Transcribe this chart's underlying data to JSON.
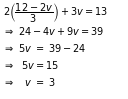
{
  "lines": [
    "2\\left(\\dfrac{12-2v}{3}\\right)+3v=13",
    "\\Rightarrow\\ 24-4v+9v=39",
    "\\Rightarrow\\ 5v\\ =\\ 39-24",
    "\\Rightarrow\\ \\ 5v=15",
    "\\Rightarrow\\ \\ \\ v\\ =\\ 3"
  ],
  "bg_color": "#ffffff",
  "text_color": "#000000",
  "fontsize": 7.0,
  "figsize": [
    1.28,
    0.99
  ],
  "dpi": 100
}
